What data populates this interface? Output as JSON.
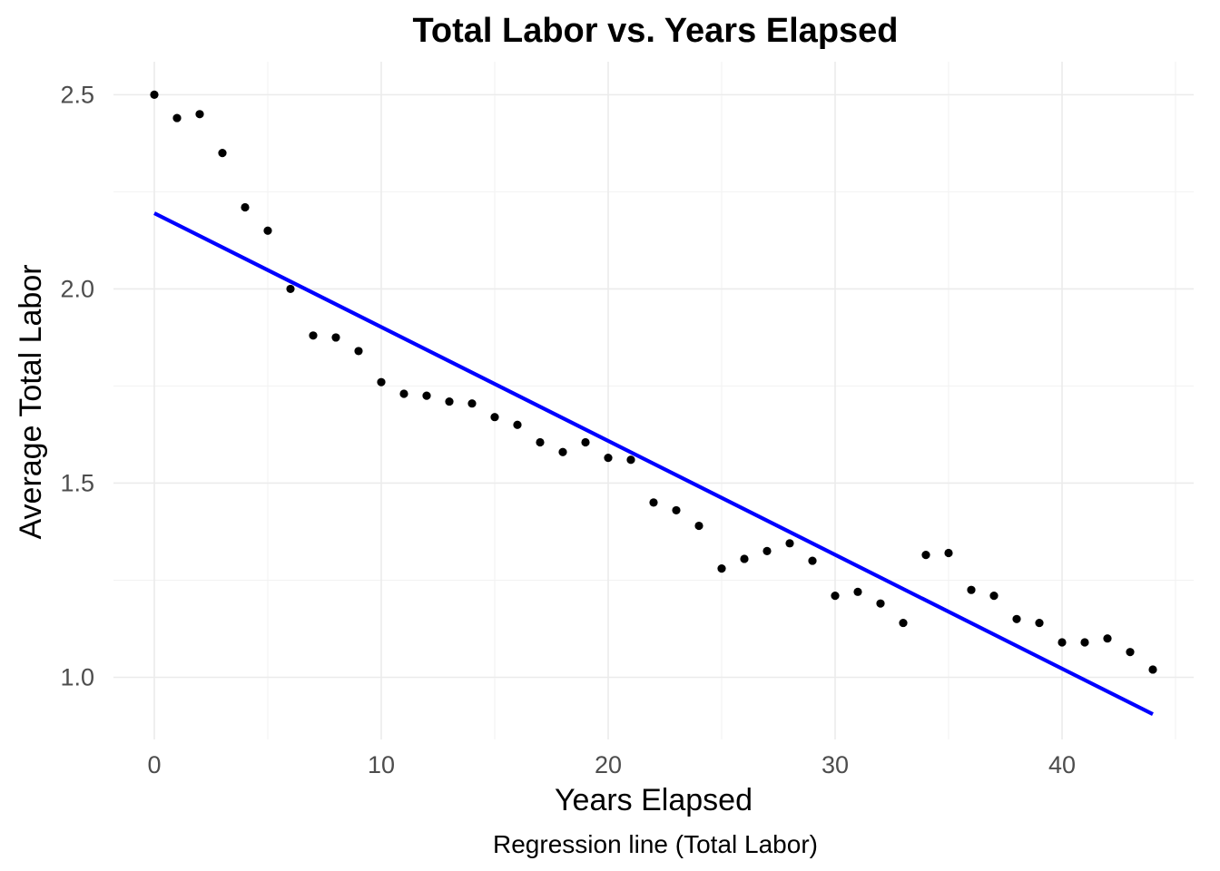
{
  "chart_data": {
    "type": "scatter",
    "title": "Total Labor vs. Years Elapsed",
    "xlabel": "Years Elapsed",
    "ylabel": "Average Total Labor",
    "caption": "Regression line (Total Labor)",
    "xlim": [
      -1.8,
      45.8
    ],
    "ylim": [
      0.84,
      2.585
    ],
    "x_ticks": [
      0,
      10,
      20,
      30,
      40
    ],
    "x_tick_labels": [
      "0",
      "10",
      "20",
      "30",
      "40"
    ],
    "y_ticks": [
      1.0,
      1.5,
      2.0,
      2.5
    ],
    "y_tick_labels": [
      "1.0",
      "1.5",
      "2.0",
      "2.5"
    ],
    "grid": true,
    "legend": "none",
    "series": [
      {
        "type": "scatter",
        "color": "#000000",
        "x": [
          0,
          1,
          2,
          3,
          4,
          5,
          6,
          7,
          8,
          9,
          10,
          11,
          12,
          13,
          14,
          15,
          16,
          17,
          18,
          19,
          20,
          21,
          22,
          23,
          24,
          25,
          26,
          27,
          28,
          29,
          30,
          31,
          32,
          33,
          34,
          35,
          36,
          37,
          38,
          39,
          40,
          41,
          42,
          43,
          44
        ],
        "y": [
          2.5,
          2.44,
          2.45,
          2.35,
          2.21,
          2.15,
          2.0,
          1.88,
          1.875,
          1.84,
          1.76,
          1.73,
          1.725,
          1.71,
          1.705,
          1.67,
          1.65,
          1.605,
          1.58,
          1.605,
          1.565,
          1.56,
          1.45,
          1.43,
          1.39,
          1.28,
          1.305,
          1.325,
          1.345,
          1.3,
          1.21,
          1.22,
          1.19,
          1.14,
          1.315,
          1.32,
          1.225,
          1.21,
          1.15,
          1.14,
          1.09,
          1.09,
          1.1,
          1.065,
          1.02
        ]
      },
      {
        "type": "line",
        "color": "#0000ff",
        "x": [
          0,
          44
        ],
        "y": [
          2.195,
          0.905
        ]
      }
    ]
  }
}
